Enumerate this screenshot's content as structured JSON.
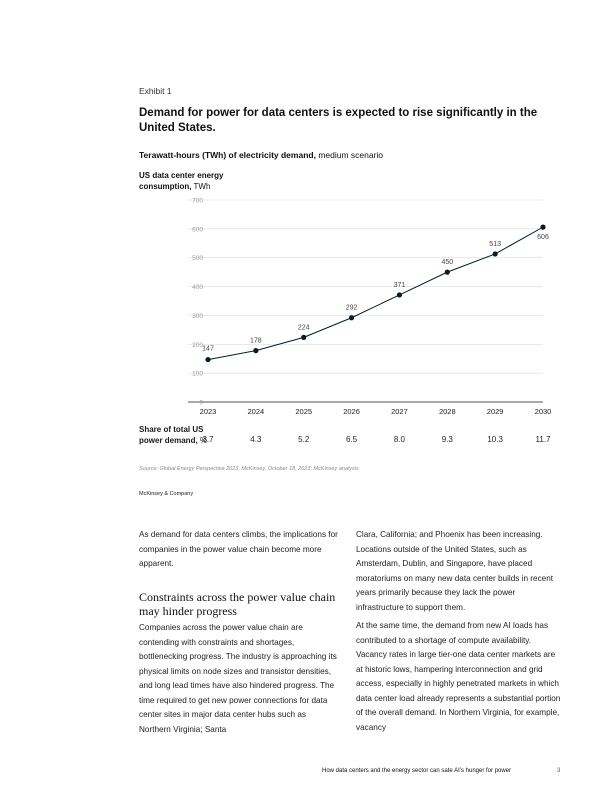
{
  "exhibit": {
    "label": "Exhibit 1",
    "title": "Demand for power for data centers is expected to rise significantly in the United States.",
    "subtitle_bold": "Terawatt-hours (TWh) of electricity demand,",
    "subtitle_rest": " medium scenario",
    "ylabel_bold": "US data center energy consumption,",
    "ylabel_rest": " TWh",
    "share_label_bold": "Share of total US power demand,",
    "share_label_rest": " %",
    "source": "Source: Global Energy Perspective 2023, McKinsey, October 18, 2023; McKinsey analysis",
    "brand": "McKinsey & Company"
  },
  "chart_data": {
    "type": "line",
    "title": "Demand for power for data centers is expected to rise significantly in the United States.",
    "ylabel": "US data center energy consumption, TWh",
    "categories": [
      "2023",
      "2024",
      "2025",
      "2026",
      "2027",
      "2028",
      "2029",
      "2030"
    ],
    "values": [
      147,
      178,
      224,
      292,
      371,
      450,
      513,
      606
    ],
    "value_labels": [
      "147",
      "178",
      "224",
      "292",
      "371",
      "450",
      "513",
      "606"
    ],
    "share_of_total": [
      "3.7",
      "4.3",
      "5.2",
      "6.5",
      "8.0",
      "9.3",
      "10.3",
      "11.7"
    ],
    "ylim": [
      0,
      700
    ],
    "yticks": [
      "0",
      "100",
      "200",
      "300",
      "400",
      "500",
      "600",
      "700"
    ],
    "grid": true,
    "line_color": "#051c2c"
  },
  "body": {
    "intro": "As demand for data centers climbs, the implications for companies in the power value chain become more apparent.",
    "section_heading": "Constraints across the power value chain may hinder progress",
    "para1": "Companies across the power value chain are contending with constraints and shortages, bottlenecking progress. The industry is approaching its physical limits on node sizes and transistor densities, and long lead times have also hindered progress. The time required to get new power connections for data center sites in major data center hubs such as Northern Virginia; Santa",
    "para2": "Clara, California; and Phoenix has been increasing. Locations outside of the United States, such as Amsterdam, Dublin, and Singapore, have placed moratoriums on many new data center builds in recent years primarily because they lack the power infrastructure to support them.",
    "para3": "At the same time, the demand from new AI loads has contributed to a shortage of compute availability. Vacancy rates in large tier-one data center markets are at historic lows, hampering interconnection and grid access, especially in highly penetrated markets in which data center load already represents a substantial portion of the overall demand. In Northern Virginia, for example, vacancy"
  },
  "footer": {
    "title": "How data centers and the energy sector can sate AI’s hunger for power",
    "page": "3"
  }
}
